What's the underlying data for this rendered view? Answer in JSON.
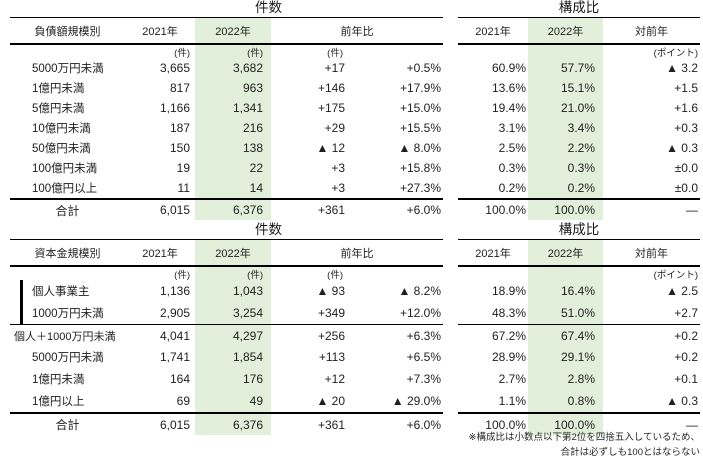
{
  "highlight_color": "#e2efda",
  "sections": [
    {
      "count": {
        "title": "件数",
        "header": {
          "category": "負債額規模別",
          "y2021": "2021年",
          "y2022": "2022年",
          "yoy": "前年比"
        },
        "units": {
          "u2021": "(件)",
          "u2022": "(件)",
          "udiff": "(件)"
        },
        "rows": [
          {
            "label": "5000万円未満",
            "v2021": "3,665",
            "v2022": "3,682",
            "diff": "+17",
            "pct": "+0.5%"
          },
          {
            "label": "1億円未満",
            "v2021": "817",
            "v2022": "963",
            "diff": "+146",
            "pct": "+17.9%"
          },
          {
            "label": "5億円未満",
            "v2021": "1,166",
            "v2022": "1,341",
            "diff": "+175",
            "pct": "+15.0%"
          },
          {
            "label": "10億円未満",
            "v2021": "187",
            "v2022": "216",
            "diff": "+29",
            "pct": "+15.5%"
          },
          {
            "label": "50億円未満",
            "v2021": "150",
            "v2022": "138",
            "diff": "▲ 12",
            "pct": "▲ 8.0%"
          },
          {
            "label": "100億円未満",
            "v2021": "19",
            "v2022": "22",
            "diff": "+3",
            "pct": "+15.8%"
          },
          {
            "label": "100億円以上",
            "v2021": "11",
            "v2022": "14",
            "diff": "+3",
            "pct": "+27.3%"
          }
        ],
        "total": {
          "label": "合計",
          "v2021": "6,015",
          "v2022": "6,376",
          "diff": "+361",
          "pct": "+6.0%"
        }
      },
      "ratio": {
        "title": "構成比",
        "header": {
          "y2021": "2021年",
          "y2022": "2022年",
          "yoy": "対前年"
        },
        "units": {
          "udiff": "(ポイント)"
        },
        "rows": [
          {
            "r2021": "60.9%",
            "r2022": "57.7%",
            "diff": "▲ 3.2"
          },
          {
            "r2021": "13.6%",
            "r2022": "15.1%",
            "diff": "+1.5"
          },
          {
            "r2021": "19.4%",
            "r2022": "21.0%",
            "diff": "+1.6"
          },
          {
            "r2021": "3.1%",
            "r2022": "3.4%",
            "diff": "+0.3"
          },
          {
            "r2021": "2.5%",
            "r2022": "2.2%",
            "diff": "▲ 0.3"
          },
          {
            "r2021": "0.3%",
            "r2022": "0.3%",
            "diff": "±0.0"
          },
          {
            "r2021": "0.2%",
            "r2022": "0.2%",
            "diff": "±0.0"
          }
        ],
        "total": {
          "r2021": "100.0%",
          "r2022": "100.0%",
          "diff": "—"
        }
      }
    },
    {
      "count": {
        "title": "件数",
        "header": {
          "category": "資本金規模別",
          "y2021": "2021年",
          "y2022": "2022年",
          "yoy": "前年比"
        },
        "units": {
          "u2021": "(件)",
          "u2022": "(件)",
          "udiff": "(件)"
        },
        "rows": [
          {
            "label": "個人事業主",
            "v2021": "1,136",
            "v2022": "1,043",
            "diff": "▲ 93",
            "pct": "▲ 8.2%",
            "style": "bracket"
          },
          {
            "label": "1000万円未満",
            "v2021": "2,905",
            "v2022": "3,254",
            "diff": "+349",
            "pct": "+12.0%",
            "style": "bracket"
          },
          {
            "label": "個人＋1000万円未満",
            "v2021": "4,041",
            "v2022": "4,297",
            "diff": "+256",
            "pct": "+6.3%",
            "style": "subtotal"
          },
          {
            "label": "5000万円未満",
            "v2021": "1,741",
            "v2022": "1,854",
            "diff": "+113",
            "pct": "+6.5%"
          },
          {
            "label": "1億円未満",
            "v2021": "164",
            "v2022": "176",
            "diff": "+12",
            "pct": "+7.3%"
          },
          {
            "label": "1億円以上",
            "v2021": "69",
            "v2022": "49",
            "diff": "▲ 20",
            "pct": "▲ 29.0%"
          }
        ],
        "total": {
          "label": "合計",
          "v2021": "6,015",
          "v2022": "6,376",
          "diff": "+361",
          "pct": "+6.0%"
        }
      },
      "ratio": {
        "title": "構成比",
        "header": {
          "y2021": "2021年",
          "y2022": "2022年",
          "yoy": "対前年"
        },
        "units": {
          "udiff": "(ポイント)"
        },
        "rows": [
          {
            "r2021": "18.9%",
            "r2022": "16.4%",
            "diff": "▲ 2.5"
          },
          {
            "r2021": "48.3%",
            "r2022": "51.0%",
            "diff": "+2.7"
          },
          {
            "r2021": "67.2%",
            "r2022": "67.4%",
            "diff": "+0.2",
            "style": "subtotal"
          },
          {
            "r2021": "28.9%",
            "r2022": "29.1%",
            "diff": "+0.2"
          },
          {
            "r2021": "2.7%",
            "r2022": "2.8%",
            "diff": "+0.1"
          },
          {
            "r2021": "1.1%",
            "r2022": "0.8%",
            "diff": "▲ 0.3"
          }
        ],
        "total": {
          "r2021": "100.0%",
          "r2022": "100.0%",
          "diff": "—"
        }
      }
    }
  ],
  "footnote": {
    "line1": "※構成比は小数点以下第2位を四捨五入しているため、",
    "line2": "合計は必ずしも100とはならない"
  }
}
